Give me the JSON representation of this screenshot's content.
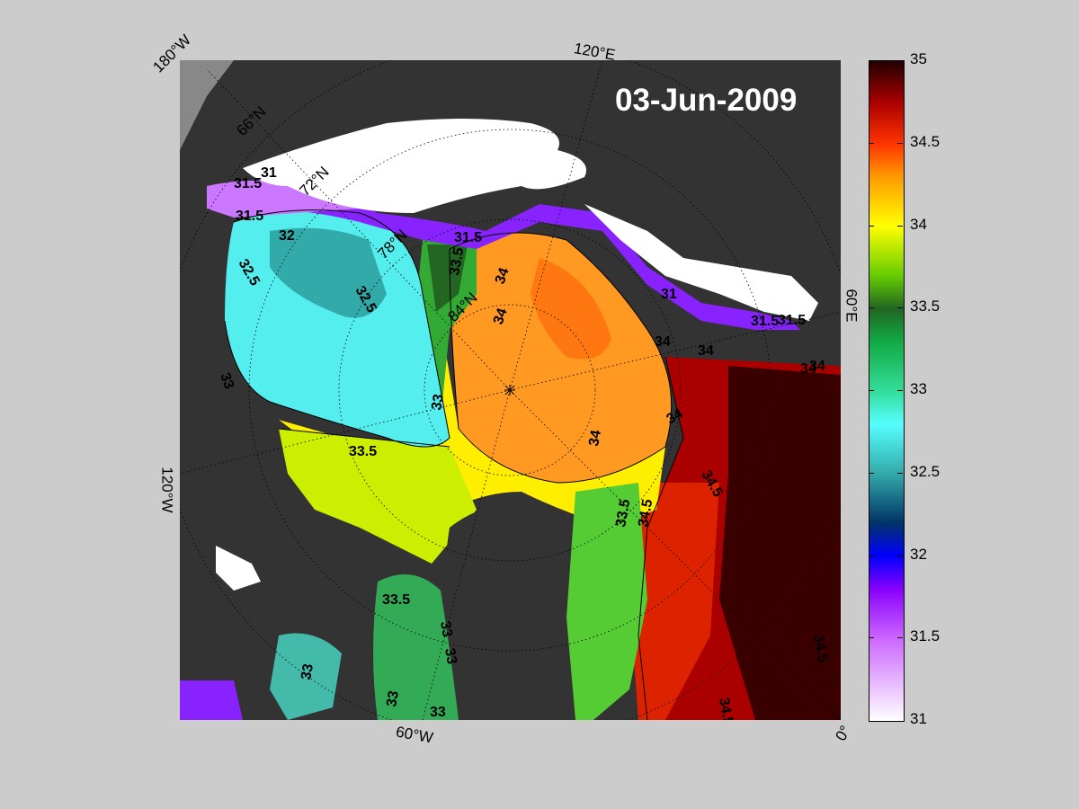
{
  "date": "03-Jun-2009",
  "lon_labels": [
    {
      "id": "lon-180w",
      "text": "180°W"
    },
    {
      "id": "lon-120e",
      "text": "120°E"
    },
    {
      "id": "lon-60e",
      "text": "60°E"
    },
    {
      "id": "lon-120w",
      "text": "120°W"
    },
    {
      "id": "lon-60w",
      "text": "60°W"
    },
    {
      "id": "lon-0",
      "text": "0°"
    }
  ],
  "lat_labels": [
    "66°N",
    "72°N",
    "78°N",
    "84°N"
  ],
  "contour_labels": [
    "31",
    "31.5",
    "32",
    "32.5",
    "33",
    "33.5",
    "34",
    "34.5"
  ],
  "colorbar": {
    "min": 31,
    "max": 35,
    "ticks": [
      "35",
      "34.5",
      "34",
      "33.5",
      "33",
      "32.5",
      "32",
      "31.5",
      "31"
    ],
    "stops": [
      {
        "value": 31.0,
        "color": "#ffffff"
      },
      {
        "value": 31.5,
        "color": "#cc66ff"
      },
      {
        "value": 31.8,
        "color": "#8800ff"
      },
      {
        "value": 32.0,
        "color": "#0000ff"
      },
      {
        "value": 32.2,
        "color": "#003366"
      },
      {
        "value": 32.5,
        "color": "#33aaaa"
      },
      {
        "value": 32.8,
        "color": "#55ffff"
      },
      {
        "value": 33.0,
        "color": "#33dd99"
      },
      {
        "value": 33.3,
        "color": "#11aa44"
      },
      {
        "value": 33.5,
        "color": "#226622"
      },
      {
        "value": 33.7,
        "color": "#66cc00"
      },
      {
        "value": 34.0,
        "color": "#ffff00"
      },
      {
        "value": 34.3,
        "color": "#ff9900"
      },
      {
        "value": 34.5,
        "color": "#ff3300"
      },
      {
        "value": 34.75,
        "color": "#aa0000"
      },
      {
        "value": 35.0,
        "color": "#220000"
      }
    ]
  },
  "colors": {
    "land": "#333333",
    "ice": "#ffffff",
    "outside": "#888888",
    "background": "#cccccc"
  }
}
